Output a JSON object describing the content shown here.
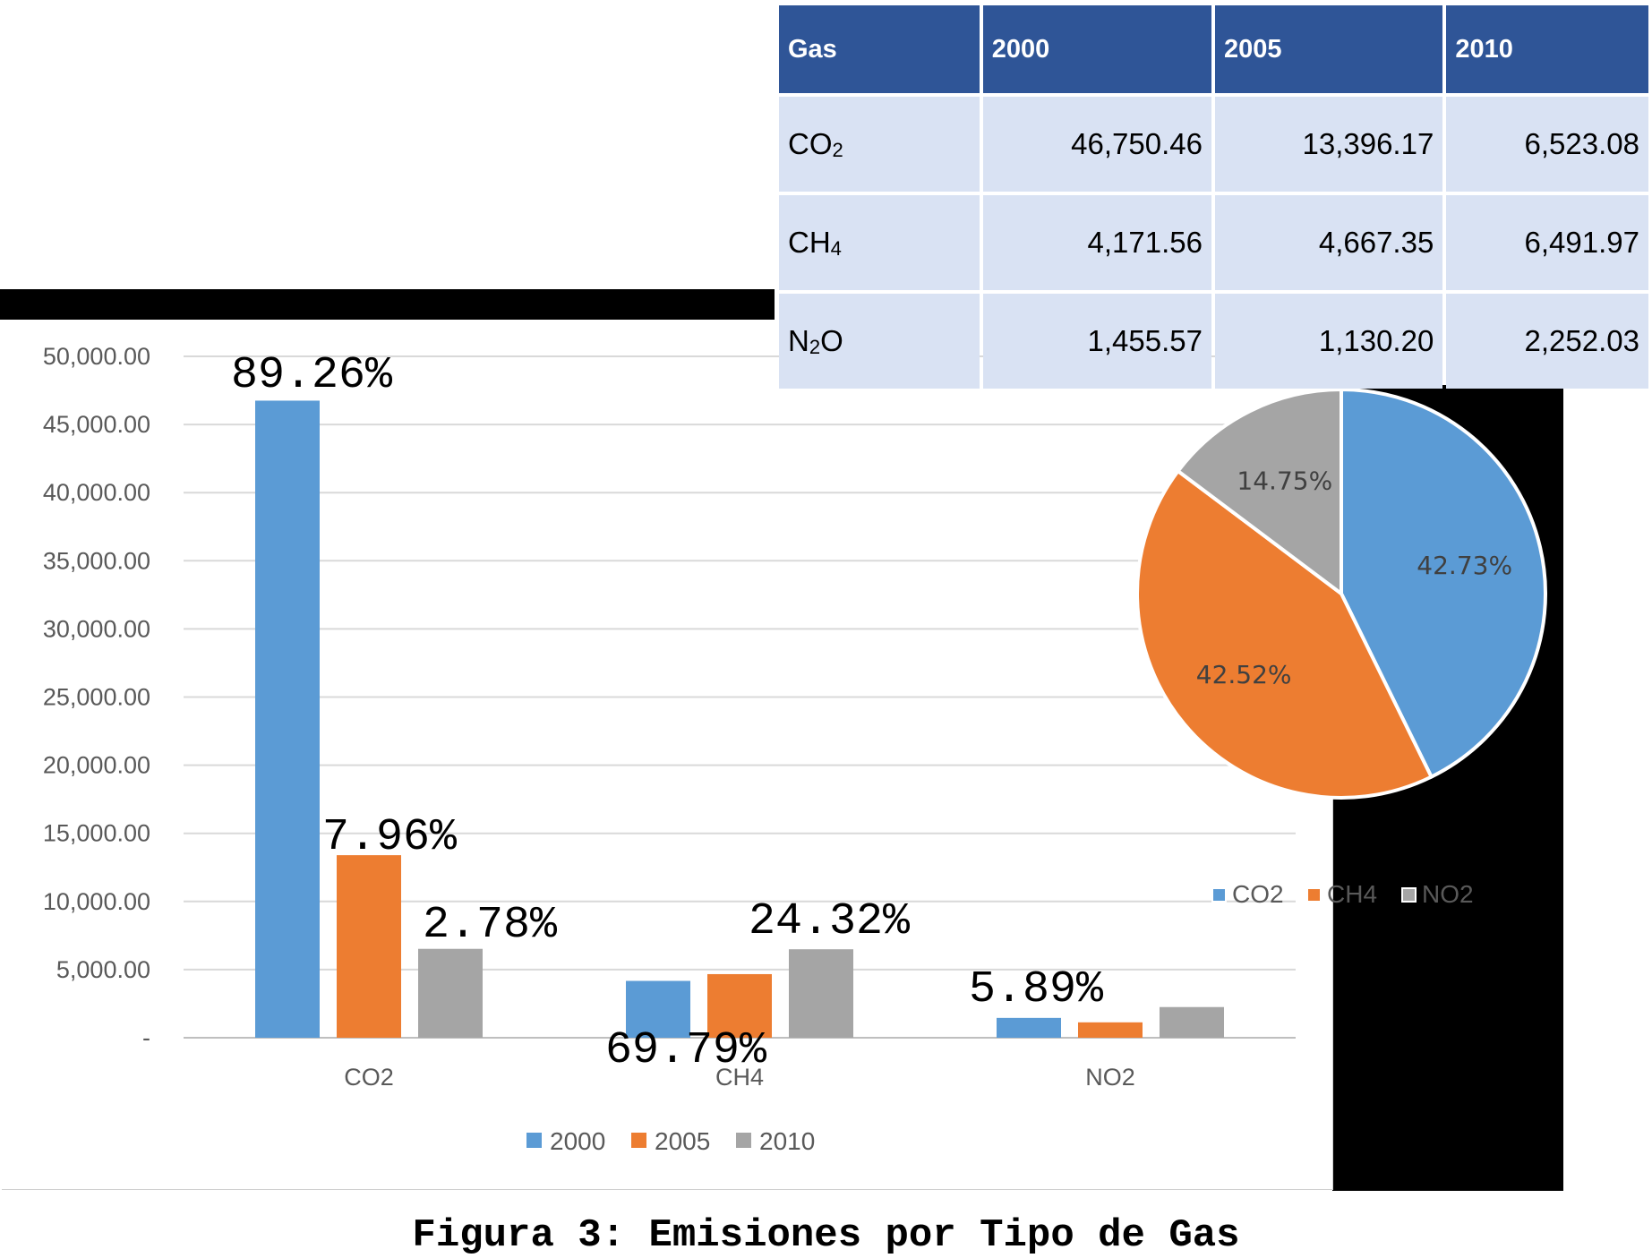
{
  "table": {
    "headers": [
      "Gas",
      "2000",
      "2005",
      "2010"
    ],
    "rows": [
      {
        "gas": "CO",
        "gas_sub": "2",
        "v2000": "46,750.46",
        "v2005": "13,396.17",
        "v2010": "6,523.08"
      },
      {
        "gas": "CH",
        "gas_sub": "4",
        "v2000": "4,171.56",
        "v2005": "4,667.35",
        "v2010": "6,491.97"
      },
      {
        "gas": "N",
        "gas_sub": "2",
        "gas_tail": "O",
        "v2000": "1,455.57",
        "v2005": "1,130.20",
        "v2010": "2,252.03"
      }
    ]
  },
  "caption": "Figura 3: Emisiones por Tipo de Gas",
  "chart_data": [
    {
      "type": "bar",
      "categories": [
        "CO2",
        "CH4",
        "NO2"
      ],
      "series": [
        {
          "name": "2000",
          "color": "#5b9bd5",
          "values": [
            46750.46,
            4171.56,
            1455.57
          ]
        },
        {
          "name": "2005",
          "color": "#ed7d31",
          "values": [
            13396.17,
            4667.35,
            1130.2
          ]
        },
        {
          "name": "2010",
          "color": "#a5a5a5",
          "values": [
            6523.08,
            6491.97,
            2252.03
          ]
        }
      ],
      "ylim": [
        0,
        50000
      ],
      "yticks": [
        0,
        5000,
        10000,
        15000,
        20000,
        25000,
        30000,
        35000,
        40000,
        45000,
        50000
      ],
      "ytick_labels": [
        "-",
        "5,000.00",
        "10,000.00",
        "15,000.00",
        "20,000.00",
        "25,000.00",
        "30,000.00",
        "35,000.00",
        "40,000.00",
        "45,000.00",
        "50,000.00"
      ],
      "grid": true,
      "legend": "bottom",
      "annotations": [
        "89.26%",
        "7.96%",
        "2.78%",
        "69.79%",
        "24.32%",
        "5.89%"
      ]
    },
    {
      "type": "pie",
      "labels": [
        "CO2",
        "CH4",
        "NO2"
      ],
      "values": [
        42.73,
        42.52,
        14.75
      ],
      "value_labels": [
        "42.73%",
        "42.52%",
        "14.75%"
      ],
      "colors": [
        "#5b9bd5",
        "#ed7d31",
        "#a5a5a5"
      ],
      "legend": "bottom"
    }
  ]
}
